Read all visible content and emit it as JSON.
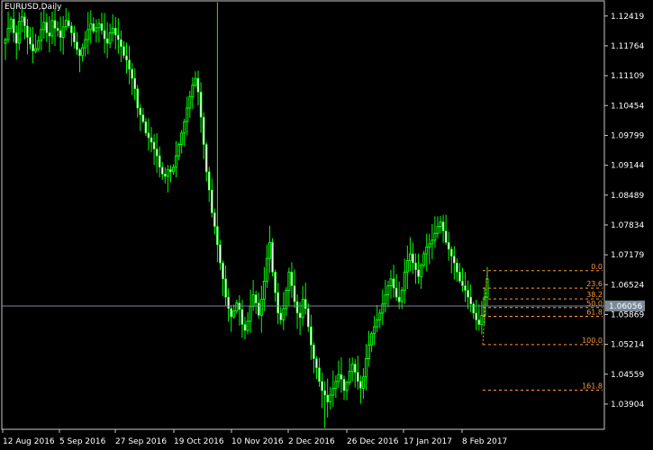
{
  "window": {
    "symbol_timeframe": "EURUSD,Daily"
  },
  "chart_data": {
    "type": "candlestick",
    "symbol": "EURUSD",
    "timeframe": "Daily",
    "current_price": 1.06056,
    "y_ticks": [
      "1.12419",
      "1.11764",
      "1.11109",
      "1.10454",
      "1.09799",
      "1.09144",
      "1.08489",
      "1.07834",
      "1.07179",
      "1.06524",
      "1.05869",
      "1.05214",
      "1.04559",
      "1.03904"
    ],
    "x_ticks": [
      "12 Aug 2016",
      "5 Sep 2016",
      "27 Sep 2016",
      "19 Oct 2016",
      "10 Nov 2016",
      "2 Dec 2016",
      "26 Dec 2016",
      "17 Jan 2017",
      "8 Feb 2017"
    ],
    "ylim": [
      1.0335,
      1.1275
    ],
    "fibonacci": {
      "high": 1.0683,
      "low": 1.0521,
      "levels": [
        {
          "label": "0.0",
          "ratio": 0.0
        },
        {
          "label": "23.6",
          "ratio": 0.236
        },
        {
          "label": "38.2",
          "ratio": 0.382
        },
        {
          "label": "50.0",
          "ratio": 0.5
        },
        {
          "label": "61.8",
          "ratio": 0.618
        },
        {
          "label": "100.0",
          "ratio": 1.0
        },
        {
          "label": "161.8",
          "ratio": 1.618
        }
      ]
    },
    "series": [
      {
        "name": "close",
        "values": [
          1.119,
          1.1215,
          1.1235,
          1.1205,
          1.1182,
          1.123,
          1.124,
          1.122,
          1.1195,
          1.118,
          1.1165,
          1.117,
          1.1188,
          1.1212,
          1.1228,
          1.1205,
          1.1198,
          1.1232,
          1.1215,
          1.121,
          1.1195,
          1.1218,
          1.1232,
          1.122,
          1.1205,
          1.1185,
          1.1168,
          1.1155,
          1.1172,
          1.119,
          1.1212,
          1.1225,
          1.1208,
          1.1216,
          1.1225,
          1.121,
          1.1192,
          1.1182,
          1.1205,
          1.1215,
          1.12,
          1.119,
          1.1175,
          1.1155,
          1.1145,
          1.1125,
          1.1105,
          1.1082,
          1.104,
          1.1025,
          1.101,
          1.0985,
          1.0975,
          1.0965,
          1.095,
          1.0935,
          1.091,
          1.0895,
          1.089,
          1.0905,
          1.09,
          1.091,
          1.0935,
          1.096,
          1.0985,
          1.101,
          1.104,
          1.1065,
          1.109,
          1.1105,
          1.1075,
          1.102,
          1.096,
          1.09,
          1.086,
          1.081,
          1.078,
          1.074,
          1.07,
          1.0665,
          1.0625,
          1.06,
          1.0582,
          1.0595,
          1.0612,
          1.0598,
          1.0565,
          1.0552,
          1.0572,
          1.0605,
          1.063,
          1.0612,
          1.0585,
          1.062,
          1.066,
          1.071,
          1.0745,
          1.068,
          1.0635,
          1.059,
          1.0575,
          1.06,
          1.064,
          1.068,
          1.065,
          1.0615,
          1.059,
          1.058,
          1.062,
          1.06,
          1.056,
          1.052,
          1.049,
          1.047,
          1.044,
          1.042,
          1.041,
          1.0395,
          1.041,
          1.0425,
          1.044,
          1.0455,
          1.0445,
          1.042,
          1.0438,
          1.0462,
          1.0478,
          1.046,
          1.044,
          1.0425,
          1.045,
          1.049,
          1.052,
          1.0545,
          1.056,
          1.0575,
          1.059,
          1.061,
          1.063,
          1.065,
          1.0665,
          1.0645,
          1.0625,
          1.0615,
          1.064,
          1.068,
          1.0705,
          1.072,
          1.07,
          1.0685,
          1.067,
          1.0695,
          1.072,
          1.0735,
          1.0742,
          1.075,
          1.0765,
          1.078,
          1.079,
          1.077,
          1.0745,
          1.073,
          1.0715,
          1.07,
          1.068,
          1.066,
          1.065,
          1.064,
          1.0625,
          1.061,
          1.059,
          1.0575,
          1.0565,
          1.0585,
          1.0625,
          1.0665
        ]
      }
    ]
  }
}
